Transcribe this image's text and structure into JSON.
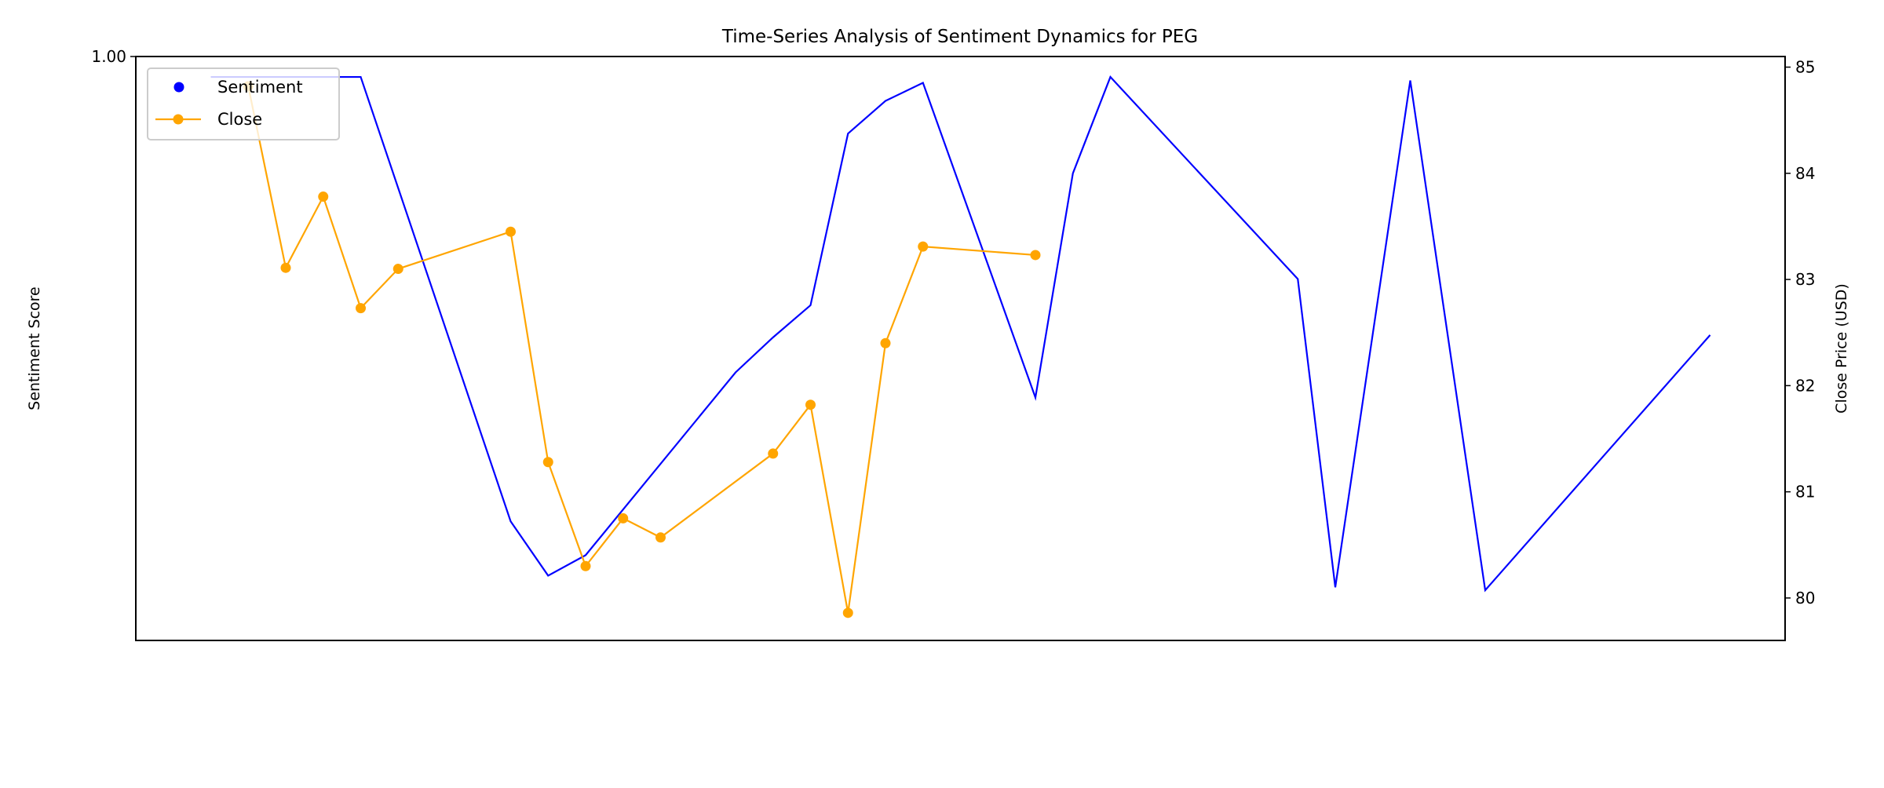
{
  "chart_data": {
    "type": "line",
    "title": "Time-Series Analysis of Sentiment Dynamics for PEG",
    "xlabel": "",
    "x_tick_labels": [],
    "xlim": [
      -2,
      42
    ],
    "grid": false,
    "legend_position": "top-left",
    "left_axis": {
      "label": "Sentiment Score",
      "ylim": [
        0.9,
        1.0
      ],
      "ticks": [
        "1.00"
      ]
    },
    "right_axis": {
      "label": "Close Price (USD)",
      "ylim": [
        79.6,
        85.1
      ],
      "ticks": [
        80,
        81,
        82,
        83,
        84,
        85
      ]
    },
    "series": [
      {
        "name": "Sentiment",
        "axis": "left",
        "color": "#0000ff",
        "marker": "none",
        "legend_marker": "dot",
        "x": [
          0,
          4,
          8,
          9,
          10,
          14,
          15,
          16,
          17,
          18,
          19,
          22,
          23,
          24,
          29,
          30,
          32,
          34,
          40
        ],
        "y": [
          0.9965,
          0.9965,
          0.9204,
          0.9111,
          0.9146,
          0.9459,
          0.9519,
          0.9574,
          0.9868,
          0.9924,
          0.9955,
          0.9416,
          0.98,
          0.9965,
          0.9619,
          0.9091,
          0.9959,
          0.9086,
          0.9523
        ]
      },
      {
        "name": "Close",
        "axis": "right",
        "color": "#ffa500",
        "marker": "circle",
        "x": [
          1,
          2,
          3,
          4,
          5,
          8,
          9,
          10,
          11,
          12,
          15,
          16,
          17,
          18,
          19,
          22
        ],
        "y": [
          84.82,
          83.11,
          83.78,
          82.73,
          83.1,
          83.45,
          81.28,
          80.3,
          80.75,
          80.57,
          81.36,
          81.82,
          79.86,
          82.4,
          83.31,
          83.23
        ]
      }
    ]
  }
}
